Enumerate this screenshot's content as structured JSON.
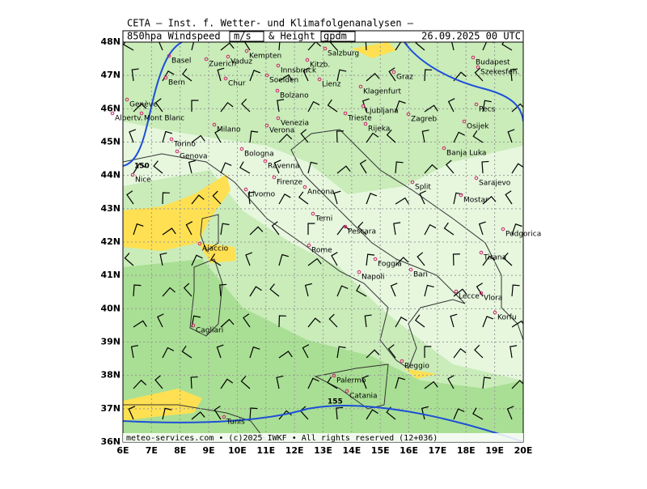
{
  "header": {
    "line1": "CETA — Inst. f. Wetter- und Klimafolgenanalysen —",
    "parameter": "850hpa Windspeed",
    "unit1": "m/s",
    "connector": "& Height",
    "unit2": "gpdm",
    "datetime": "26.09.2025 00 UTC"
  },
  "footer": "meteo-services.com • (c)2025 IWKF • All rights reserved (12+036)",
  "map": {
    "lat_labels": [
      "48N",
      "47N",
      "46N",
      "45N",
      "44N",
      "43N",
      "42N",
      "41N",
      "40N",
      "39N",
      "38N",
      "37N",
      "36N"
    ],
    "lon_labels": [
      "6E",
      "7E",
      "8E",
      "9E",
      "10E",
      "11E",
      "12E",
      "13E",
      "14E",
      "15E",
      "16E",
      "17E",
      "18E",
      "19E",
      "20E"
    ],
    "contour_labels": [
      "150",
      "155"
    ],
    "cities": [
      "Basel",
      "Zuerich",
      "Vaduz",
      "Kempten",
      "Kitzb.",
      "Salzburg",
      "Innsbruck",
      "Bern",
      "Chur",
      "Soelden",
      "Lienz",
      "Graz",
      "Budapest",
      "Szekesfeh.",
      "Klagenfurt",
      "Ljubljana",
      "Genève",
      "Albertv.",
      "Mont Blanc",
      "Trieste",
      "Rijeka",
      "Zagreb",
      "Pecs",
      "Osijek",
      "Milano",
      "Verona",
      "Venezia",
      "Bolzano",
      "Torino",
      "Bologna",
      "Banja Luka",
      "Genova",
      "Ravenna",
      "Nice",
      "Livorno",
      "Firenze",
      "Ancona",
      "Split",
      "Sarajevo",
      "Mostar",
      "Terni",
      "Pescara",
      "Podgorica",
      "Ajaccio",
      "Rome",
      "Foggia",
      "Tirana",
      "Bari",
      "Napoli",
      "Lecce",
      "Vlora",
      "Korfu",
      "Cagliari",
      "Reggio",
      "Palermo",
      "Catania",
      "Tunis"
    ]
  }
}
